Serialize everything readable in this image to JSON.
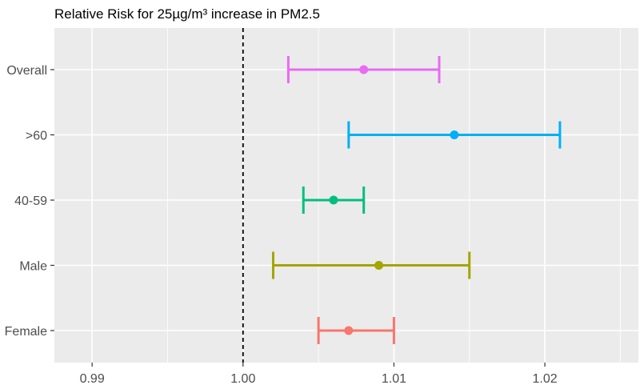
{
  "chart_data": {
    "type": "forest",
    "title": "Relative Risk for 25µg/m³ increase in PM2.5",
    "xlabel": "",
    "ylabel": "",
    "xlim": [
      0.9875,
      1.0262
    ],
    "x_ticks": [
      {
        "value": 0.99,
        "label": "0.99"
      },
      {
        "value": 1.0,
        "label": "1.00"
      },
      {
        "value": 1.01,
        "label": "1.01"
      },
      {
        "value": 1.02,
        "label": "1.02"
      }
    ],
    "reference_line": {
      "value": 1.0,
      "style": "dashed"
    },
    "grid": true,
    "legend": "none",
    "categories": [
      "Overall",
      ">60",
      "40-59",
      "Male",
      "Female"
    ],
    "estimates": [
      {
        "label": "Overall",
        "estimate": 1.008,
        "lower": 1.003,
        "upper": 1.013,
        "color": "#E76BF3"
      },
      {
        "label": ">60",
        "estimate": 1.014,
        "lower": 1.007,
        "upper": 1.021,
        "color": "#00B0F6"
      },
      {
        "label": "40-59",
        "estimate": 1.006,
        "lower": 1.004,
        "upper": 1.008,
        "color": "#00BF7D"
      },
      {
        "label": "Male",
        "estimate": 1.009,
        "lower": 1.002,
        "upper": 1.015,
        "color": "#A3A500"
      },
      {
        "label": "Female",
        "estimate": 1.007,
        "lower": 1.005,
        "upper": 1.01,
        "color": "#F8766D"
      }
    ],
    "panel_background": "#EBEBEB",
    "grid_color": "#FFFFFF"
  }
}
